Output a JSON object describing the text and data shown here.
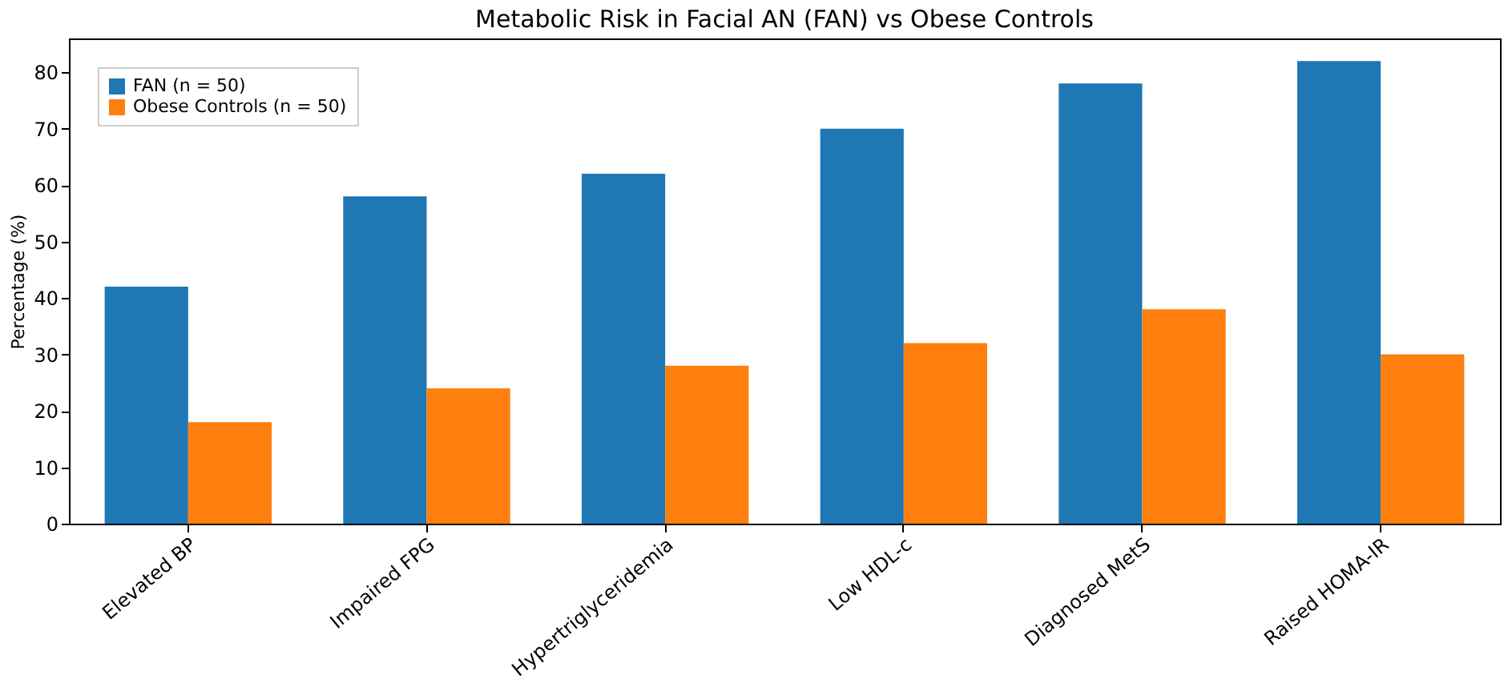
{
  "chart_data": {
    "type": "bar",
    "title": "Metabolic Risk in Facial AN (FAN) vs Obese Controls",
    "ylabel": "Percentage (%)",
    "categories": [
      "Elevated BP",
      "Impaired FPG",
      "Hypertriglyceridemia",
      "Low HDL-c",
      "Diagnosed MetS",
      "Raised HOMA-IR"
    ],
    "series": [
      {
        "name": "FAN (n = 50)",
        "color": "#1f77b4",
        "values": [
          42,
          58,
          62,
          70,
          78,
          82
        ]
      },
      {
        "name": "Obese Controls (n = 50)",
        "color": "#ff7f0e",
        "values": [
          18,
          24,
          28,
          32,
          38,
          30
        ]
      }
    ],
    "ylim": [
      0,
      86
    ],
    "yticks": [
      0,
      10,
      20,
      30,
      40,
      50,
      60,
      70,
      80
    ],
    "grid": false,
    "legend": "top left"
  }
}
